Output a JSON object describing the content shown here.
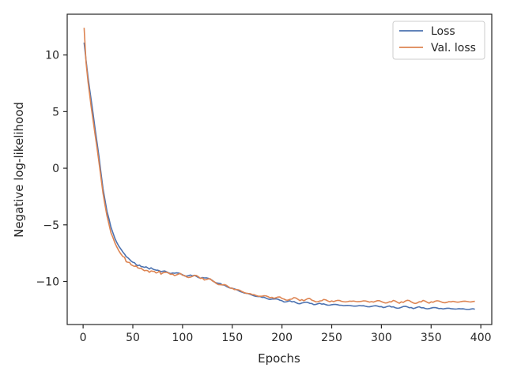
{
  "chart_data": {
    "type": "line",
    "title": "",
    "xlabel": "Epochs",
    "ylabel": "Negative log-likelihood",
    "xlim": [
      -16,
      411
    ],
    "ylim": [
      -13.8,
      13.6
    ],
    "xticks": [
      0,
      50,
      100,
      150,
      200,
      250,
      300,
      350,
      400
    ],
    "yticks": [
      -10,
      -5,
      0,
      5,
      10
    ],
    "grid": false,
    "legend_position": "top-right",
    "series": [
      {
        "name": "Loss",
        "color": "#4c72b0",
        "points": [
          [
            1,
            11.1
          ],
          [
            3,
            9.5
          ],
          [
            5,
            8.0
          ],
          [
            8,
            6.1
          ],
          [
            12,
            3.5
          ],
          [
            16,
            1.0
          ],
          [
            20,
            -1.8
          ],
          [
            24,
            -3.8
          ],
          [
            28,
            -5.2
          ],
          [
            32,
            -6.2
          ],
          [
            36,
            -6.9
          ],
          [
            40,
            -7.4
          ],
          [
            45,
            -7.9
          ],
          [
            50,
            -8.3
          ],
          [
            55,
            -8.6
          ],
          [
            60,
            -8.7
          ],
          [
            65,
            -8.8
          ],
          [
            70,
            -8.9
          ],
          [
            75,
            -9.0
          ],
          [
            80,
            -9.1
          ],
          [
            90,
            -9.25
          ],
          [
            100,
            -9.4
          ],
          [
            110,
            -9.5
          ],
          [
            120,
            -9.65
          ],
          [
            130,
            -9.9
          ],
          [
            140,
            -10.3
          ],
          [
            150,
            -10.6
          ],
          [
            160,
            -10.95
          ],
          [
            170,
            -11.2
          ],
          [
            180,
            -11.4
          ],
          [
            190,
            -11.55
          ],
          [
            200,
            -11.7
          ],
          [
            210,
            -11.8
          ],
          [
            220,
            -11.9
          ],
          [
            230,
            -11.95
          ],
          [
            240,
            -12.0
          ],
          [
            250,
            -12.05
          ],
          [
            260,
            -12.1
          ],
          [
            270,
            -12.15
          ],
          [
            280,
            -12.15
          ],
          [
            290,
            -12.2
          ],
          [
            300,
            -12.22
          ],
          [
            310,
            -12.25
          ],
          [
            320,
            -12.28
          ],
          [
            330,
            -12.3
          ],
          [
            340,
            -12.32
          ],
          [
            350,
            -12.35
          ],
          [
            360,
            -12.38
          ],
          [
            370,
            -12.4
          ],
          [
            380,
            -12.42
          ],
          [
            394,
            -12.45
          ]
        ]
      },
      {
        "name": "Val. loss",
        "color": "#dd8452",
        "points": [
          [
            1,
            12.4
          ],
          [
            3,
            9.3
          ],
          [
            5,
            7.6
          ],
          [
            8,
            5.5
          ],
          [
            12,
            3.0
          ],
          [
            16,
            0.5
          ],
          [
            20,
            -2.2
          ],
          [
            24,
            -4.2
          ],
          [
            28,
            -5.7
          ],
          [
            32,
            -6.6
          ],
          [
            36,
            -7.3
          ],
          [
            40,
            -7.8
          ],
          [
            45,
            -8.3
          ],
          [
            50,
            -8.6
          ],
          [
            55,
            -8.8
          ],
          [
            60,
            -8.95
          ],
          [
            65,
            -9.05
          ],
          [
            70,
            -9.1
          ],
          [
            75,
            -9.2
          ],
          [
            80,
            -9.25
          ],
          [
            90,
            -9.35
          ],
          [
            100,
            -9.45
          ],
          [
            110,
            -9.55
          ],
          [
            120,
            -9.7
          ],
          [
            130,
            -9.95
          ],
          [
            140,
            -10.3
          ],
          [
            150,
            -10.6
          ],
          [
            160,
            -10.9
          ],
          [
            170,
            -11.15
          ],
          [
            180,
            -11.3
          ],
          [
            190,
            -11.4
          ],
          [
            200,
            -11.5
          ],
          [
            210,
            -11.55
          ],
          [
            220,
            -11.6
          ],
          [
            230,
            -11.65
          ],
          [
            240,
            -11.7
          ],
          [
            250,
            -11.72
          ],
          [
            260,
            -11.75
          ],
          [
            270,
            -11.75
          ],
          [
            280,
            -11.75
          ],
          [
            290,
            -11.78
          ],
          [
            300,
            -11.78
          ],
          [
            310,
            -11.8
          ],
          [
            320,
            -11.8
          ],
          [
            330,
            -11.8
          ],
          [
            340,
            -11.8
          ],
          [
            350,
            -11.8
          ],
          [
            360,
            -11.8
          ],
          [
            370,
            -11.8
          ],
          [
            380,
            -11.78
          ],
          [
            394,
            -11.75
          ]
        ]
      }
    ]
  }
}
